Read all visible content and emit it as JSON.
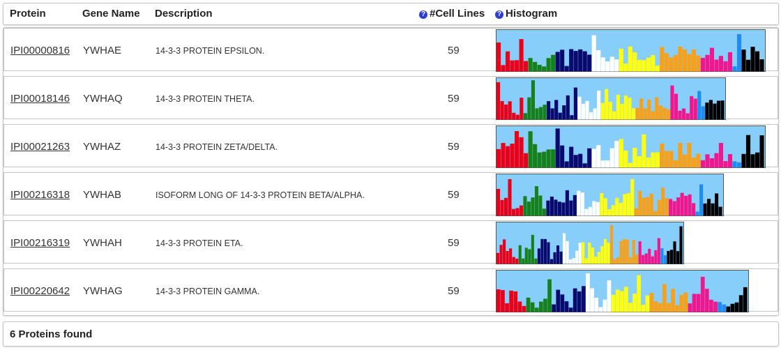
{
  "header": {
    "protein": "Protein",
    "gene": "Gene Name",
    "description": "Description",
    "cell_lines": "#Cell Lines",
    "histogram": "Histogram",
    "help_glyph": "?"
  },
  "colors": {
    "histogram_bg": "#87cefa",
    "groups": [
      "#e8001a",
      "#16811c",
      "#0a0a6e",
      "#ffffff",
      "#ffff14",
      "#f5a11c",
      "#f0168e",
      "#1e8cf0",
      "#000000"
    ]
  },
  "proteins": [
    {
      "id": "IPI00000816",
      "gene": "YWHAE",
      "description": "14-3-3 PROTEIN EPSILON.",
      "cell_lines": "59",
      "hist_size": "large"
    },
    {
      "id": "IPI00018146",
      "gene": "YWHAQ",
      "description": "14-3-3 PROTEIN THETA.",
      "cell_lines": "59",
      "hist_size": "medium"
    },
    {
      "id": "IPI00021263",
      "gene": "YWHAZ",
      "description": "14-3-3 PROTEIN ZETA/DELTA.",
      "cell_lines": "59",
      "hist_size": "large"
    },
    {
      "id": "IPI00216318",
      "gene": "YWHAB",
      "description": "ISOFORM LONG OF 14-3-3 PROTEIN BETA/ALPHA.",
      "cell_lines": "59",
      "hist_size": "medium"
    },
    {
      "id": "IPI00216319",
      "gene": "YWHAH",
      "description": "14-3-3 PROTEIN ETA.",
      "cell_lines": "59",
      "hist_size": "small"
    },
    {
      "id": "IPI00220642",
      "gene": "YWHAG",
      "description": "14-3-3 PROTEIN GAMMA.",
      "cell_lines": "59",
      "hist_size": "medium-large"
    }
  ],
  "footer": {
    "summary": "6 Proteins found"
  }
}
